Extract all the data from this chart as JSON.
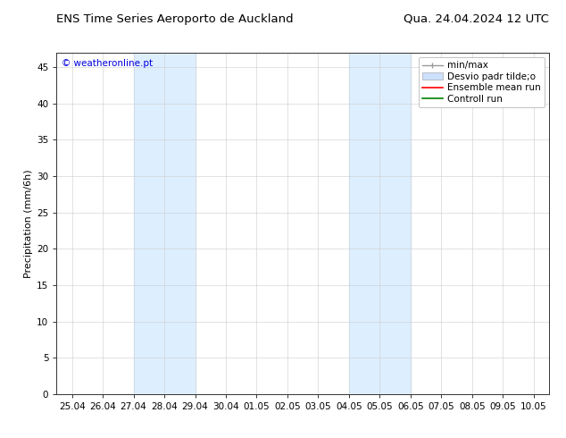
{
  "title_left": "ENS Time Series Aeroporto de Auckland",
  "title_right": "Qua. 24.04.2024 12 UTC",
  "ylabel": "Precipitation (mm/6h)",
  "watermark": "© weatheronline.pt",
  "watermark_color": "#0000dd",
  "ylim": [
    0,
    47
  ],
  "yticks": [
    0,
    5,
    10,
    15,
    20,
    25,
    30,
    35,
    40,
    45
  ],
  "xtick_labels": [
    "25.04",
    "26.04",
    "27.04",
    "28.04",
    "29.04",
    "30.04",
    "01.05",
    "02.05",
    "03.05",
    "04.05",
    "05.05",
    "06.05",
    "07.05",
    "08.05",
    "09.05",
    "10.05"
  ],
  "background_color": "#ffffff",
  "plot_bg_color": "#ffffff",
  "shaded_regions": [
    {
      "xstart": 2,
      "xend": 4,
      "color": "#ddeeff"
    },
    {
      "xstart": 9,
      "xend": 11,
      "color": "#ddeeff"
    }
  ],
  "legend_items": [
    {
      "label": "min/max",
      "color": "#999999",
      "lw": 1.0,
      "style": "errbar"
    },
    {
      "label": "Desvio padr tilde;o",
      "color": "#cce0ff",
      "lw": 8,
      "style": "box"
    },
    {
      "label": "Ensemble mean run",
      "color": "#ff0000",
      "lw": 1.2,
      "style": "line"
    },
    {
      "label": "Controll run",
      "color": "#008000",
      "lw": 1.2,
      "style": "line"
    }
  ],
  "title_fontsize": 9.5,
  "tick_fontsize": 7.5,
  "ylabel_fontsize": 8,
  "legend_fontsize": 7.5,
  "watermark_fontsize": 7.5,
  "grid_color": "#cccccc",
  "spine_color": "#333333"
}
